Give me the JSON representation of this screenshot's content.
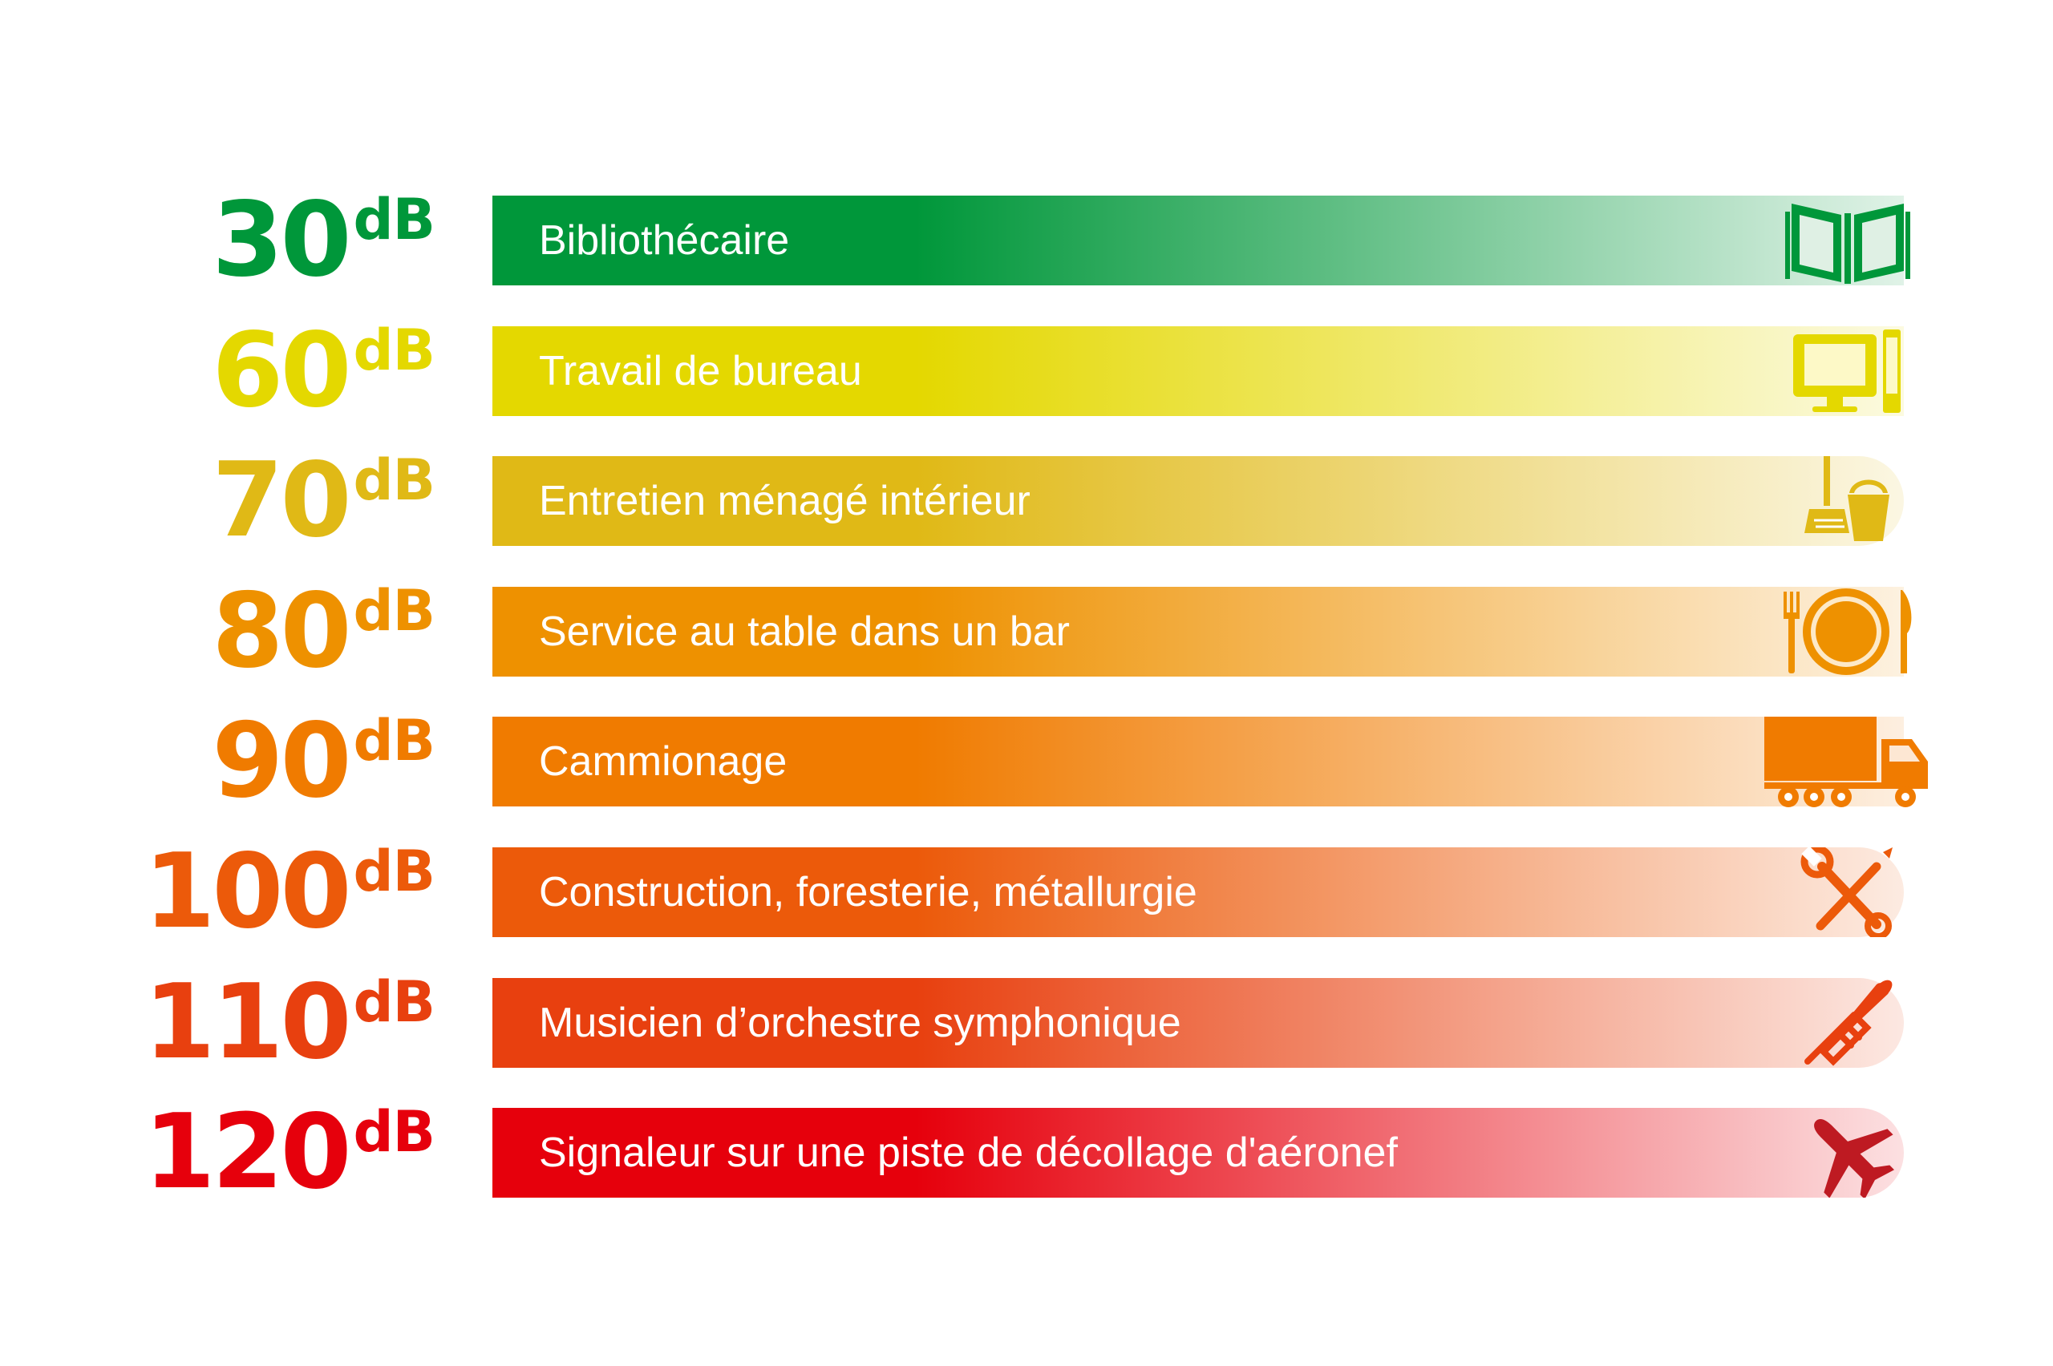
{
  "colors": {
    "green": "#00973A",
    "yellow": "#E4D800",
    "mustard": "#E0B916",
    "amber": "#EE9100",
    "orange": "#F07B00",
    "orange_red": "#EC5A0A",
    "red_orange": "#E8400F",
    "red": "#E6000C",
    "airplane": "#BE1A22"
  },
  "rows": [
    {
      "level": "30",
      "unit": "dB",
      "label": "Bibliothécaire",
      "icon": "open-book-icon",
      "color": "#00973A"
    },
    {
      "level": "60",
      "unit": "dB",
      "label": "Travail de bureau",
      "icon": "desktop-computer-icon",
      "color": "#E4D800"
    },
    {
      "level": "70",
      "unit": "dB",
      "label": "Entretien ménagé intérieur",
      "icon": "broom-bucket-icon",
      "color": "#E0B916"
    },
    {
      "level": "80",
      "unit": "dB",
      "label": "Service au table dans un bar",
      "icon": "plate-cutlery-icon",
      "color": "#EE9100"
    },
    {
      "level": "90",
      "unit": "dB",
      "label": "Cammionage",
      "icon": "truck-icon",
      "color": "#F07B00"
    },
    {
      "level": "100",
      "unit": "dB",
      "label": "Construction, foresterie, métallurgie",
      "icon": "wrench-screwdriver-icon",
      "color": "#EC5A0A"
    },
    {
      "level": "110",
      "unit": "dB",
      "label": "Musicien d’orchestre symphonique",
      "icon": "trumpet-icon",
      "color": "#E8400F"
    },
    {
      "level": "120",
      "unit": "dB",
      "label": "Signaleur sur une piste de décollage d'aéronef",
      "icon": "airplane-icon",
      "color": "#E6000C"
    }
  ]
}
